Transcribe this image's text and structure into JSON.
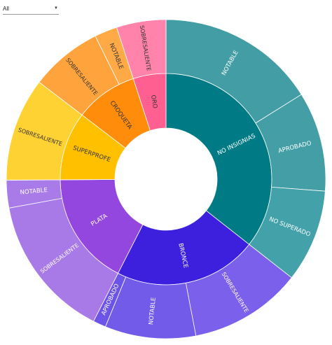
{
  "filter": {
    "selected": "All",
    "icon": "caret-down-icon"
  },
  "chart_data": {
    "type": "sunburst",
    "center": "",
    "children": [
      {
        "name": "NO INSIGNIAS",
        "value": 35.6,
        "color": "#007b85",
        "children": [
          {
            "name": "NOTABLE",
            "value": 16.1,
            "color": "#429da4"
          },
          {
            "name": "APROBADO",
            "value": 10.1,
            "color": "#439ea5"
          },
          {
            "name": "NO SUPERADO",
            "value": 9.4,
            "color": "#42a1a9"
          }
        ]
      },
      {
        "name": "BRONCE",
        "value": 21.9,
        "color": "#3c20de",
        "children": [
          {
            "name": "SOBRESALIENTE",
            "value": 11.4,
            "color": "#7a60ea"
          },
          {
            "name": "NOTABLE",
            "value": 9.2,
            "color": "#725be8"
          },
          {
            "name": "APROBADO",
            "value": 1.3,
            "color": "#6d54e8"
          }
        ]
      },
      {
        "name": "PLATA",
        "value": 17.4,
        "color": "#9347de",
        "children": [
          {
            "name": "SOBRESALIENTE",
            "value": 14.6,
            "color": "#a87ae8"
          },
          {
            "name": "NOTABLE",
            "value": 2.8,
            "color": "#a87be8"
          }
        ]
      },
      {
        "name": "SUPERPROFE",
        "value": 10.5,
        "color": "#ffc000",
        "children": [
          {
            "name": "SOBRESALIENTE",
            "value": 10.5,
            "color": "#ffd233"
          }
        ]
      },
      {
        "name": "CROQUETA",
        "value": 9.6,
        "color": "#ff8c0a",
        "children": [
          {
            "name": "SOBRESALIENTE",
            "value": 7.3,
            "color": "#ffa43d"
          },
          {
            "name": "NOTABLE",
            "value": 2.3,
            "color": "#ffaa47"
          }
        ]
      },
      {
        "name": "ORO",
        "value": 5.0,
        "color": "#ff5f91",
        "children": [
          {
            "name": "SOBRESALIENTE",
            "value": 5.0,
            "color": "#ff83ab"
          }
        ]
      }
    ]
  }
}
